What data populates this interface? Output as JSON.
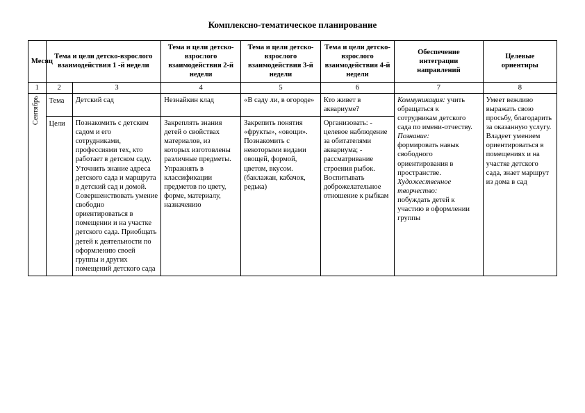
{
  "title": "Комплексно-тематическое планирование",
  "headers": {
    "month": "Месяц",
    "week1": "Тема и цели детско-взрослого взаимодействия 1 -й недели",
    "week2": "Тема и цели детско-взрослого взаимодействия 2-й недели",
    "week3": "Тема и цели детско-взрослого взаимодействия 3-й недели",
    "week4": "Тема и цели детско-взрослого взаимодействия  4-й недели",
    "integration": "Обеспечение интеграции направлений",
    "orient": "Целевые ориентиры"
  },
  "num": {
    "c1": "1",
    "c2": "2",
    "c3": "3",
    "c4": "4",
    "c5": "5",
    "c6": "6",
    "c7": "7",
    "c8": "8"
  },
  "month": "Сентябрь",
  "rows": {
    "tema_label": "Тема",
    "celi_label": "Цели",
    "tema": {
      "w1": "Детский сад",
      "w2": "Незнайкин клад",
      "w3": "«В саду ли, в огороде»",
      "w4": "Кто живет в аквариуме?"
    },
    "celi": {
      "w1": "Познакомить с детским садом и его сотрудниками, профессиями тех, кто работает в детском саду. Уточнить знание адреса детского сада и маршрута в детский сад и домой. Совершенствовать умение свободно ориентироваться в помещении и на участке детского сада. Приобщать детей к деятельности по оформлению своей группы и других помещений детского сада",
      "w2": "Закреплять знания детей о свойствах материалов, из которых изготовлены различные предметы. Упражнять в классификации предметов по цвету, форме, материалу, назначению",
      "w3": "Закрепить понятия «фрукты», «овощи». Познакомить с некоторыми видами овощей, формой, цветом, вкусом. (баклажан, кабачок, редька)",
      "w4": "Организовать:\n - целевое наблюдение за обитателями аквариума;\n - рассматривание строения рыбок. Воспитывать доброжелательное отношение к рыбкам"
    },
    "integration": {
      "k_label": "Коммуникация:",
      "k_text": " учить обращаться к сотрудникам детского сада по имени-отчеству.",
      "p_label": "Познание:",
      "p_text": " формировать навык свободного ориентирования в пространстве.",
      "h_label": "Художественное творчество:",
      "h_text": " побуждать детей к участию в оформлении группы"
    },
    "orient": "Умеет вежливо выражать свою просьбу, благодарить за оказанную услугу. Владеет умением ориентироваться в помещениях и на участке детского сада, знает маршрут из дома в сад"
  }
}
